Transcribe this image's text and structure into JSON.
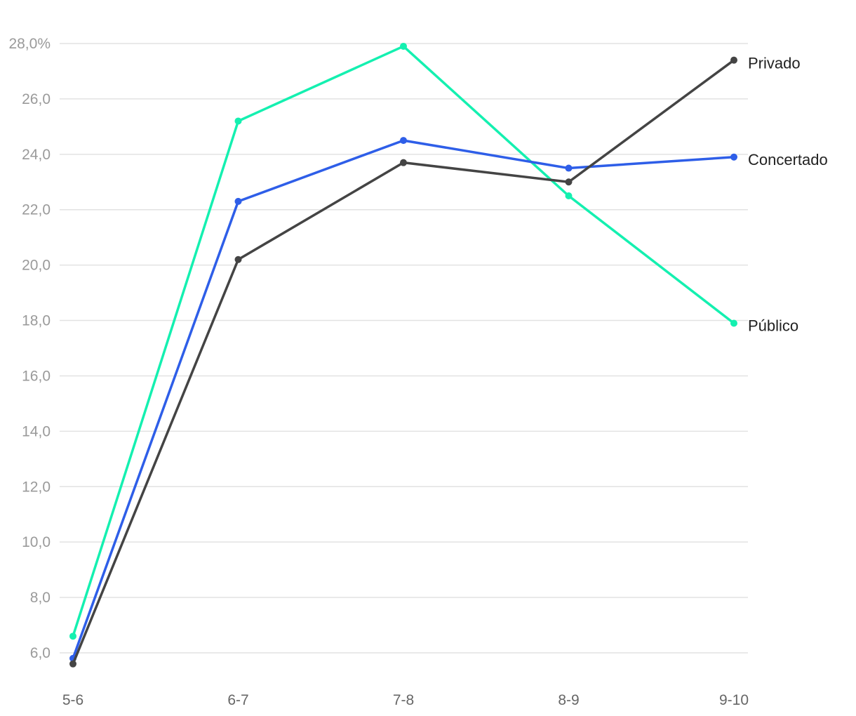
{
  "chart_data": {
    "type": "line",
    "categories": [
      "5-6",
      "6-7",
      "7-8",
      "8-9",
      "9-10"
    ],
    "y_ticks": [
      "6,0",
      "8,0",
      "10,0",
      "12,0",
      "14,0",
      "16,0",
      "18,0",
      "20,0",
      "22,0",
      "24,0",
      "26,0",
      "28,0%"
    ],
    "ylim": [
      6,
      28
    ],
    "grid": true,
    "series": [
      {
        "name": "Público",
        "color": "#14f0b0",
        "values": [
          6.6,
          25.2,
          27.9,
          22.5,
          17.9
        ]
      },
      {
        "name": "Concertado",
        "color": "#2e5ee8",
        "values": [
          5.8,
          22.3,
          24.5,
          23.5,
          23.9
        ]
      },
      {
        "name": "Privado",
        "color": "#444444",
        "values": [
          5.6,
          20.2,
          23.7,
          23.0,
          27.4
        ]
      }
    ]
  }
}
